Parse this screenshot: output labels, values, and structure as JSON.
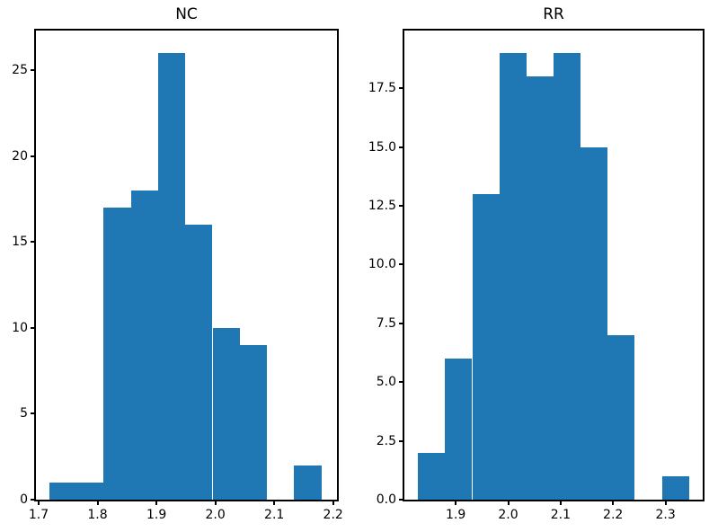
{
  "figure": {
    "background": "#ffffff",
    "spine_color": "#000000",
    "text_color": "#000000"
  },
  "chart_data": [
    {
      "type": "bar",
      "subtype": "histogram",
      "title": "NC",
      "bar_color": "#1f77b4",
      "bins": {
        "start": 1.718,
        "width": 0.0462
      },
      "counts": [
        1,
        1,
        17,
        18,
        26,
        16,
        10,
        9,
        0,
        2
      ],
      "xlim": [
        1.6955,
        2.2065
      ],
      "ylim": [
        0,
        27.3
      ],
      "xlabel": "",
      "ylabel": "",
      "grid": false,
      "legend": null,
      "xticks": [
        {
          "v": 1.7,
          "label": "1.7"
        },
        {
          "v": 1.8,
          "label": "1.8"
        },
        {
          "v": 1.9,
          "label": "1.9"
        },
        {
          "v": 2.0,
          "label": "2.0"
        },
        {
          "v": 2.1,
          "label": "2.1"
        },
        {
          "v": 2.2,
          "label": "2.2"
        }
      ],
      "yticks": [
        {
          "v": 0,
          "label": "0"
        },
        {
          "v": 5,
          "label": "5"
        },
        {
          "v": 10,
          "label": "10"
        },
        {
          "v": 15,
          "label": "15"
        },
        {
          "v": 20,
          "label": "20"
        },
        {
          "v": 25,
          "label": "25"
        }
      ]
    },
    {
      "type": "bar",
      "subtype": "histogram",
      "title": "RR",
      "bar_color": "#1f77b4",
      "bins": {
        "start": 1.828,
        "width": 0.0517
      },
      "counts": [
        2,
        6,
        13,
        19,
        18,
        19,
        15,
        7,
        0,
        1
      ],
      "xlim": [
        1.802,
        2.371
      ],
      "ylim": [
        0,
        19.95
      ],
      "xlabel": "",
      "ylabel": "",
      "grid": false,
      "legend": null,
      "xticks": [
        {
          "v": 1.9,
          "label": "1.9"
        },
        {
          "v": 2.0,
          "label": "2.0"
        },
        {
          "v": 2.1,
          "label": "2.1"
        },
        {
          "v": 2.2,
          "label": "2.2"
        },
        {
          "v": 2.3,
          "label": "2.3"
        }
      ],
      "yticks": [
        {
          "v": 0,
          "label": "0.0"
        },
        {
          "v": 2.5,
          "label": "2.5"
        },
        {
          "v": 5,
          "label": "5.0"
        },
        {
          "v": 7.5,
          "label": "7.5"
        },
        {
          "v": 10,
          "label": "10.0"
        },
        {
          "v": 12.5,
          "label": "12.5"
        },
        {
          "v": 15,
          "label": "15.0"
        },
        {
          "v": 17.5,
          "label": "17.5"
        }
      ]
    }
  ]
}
